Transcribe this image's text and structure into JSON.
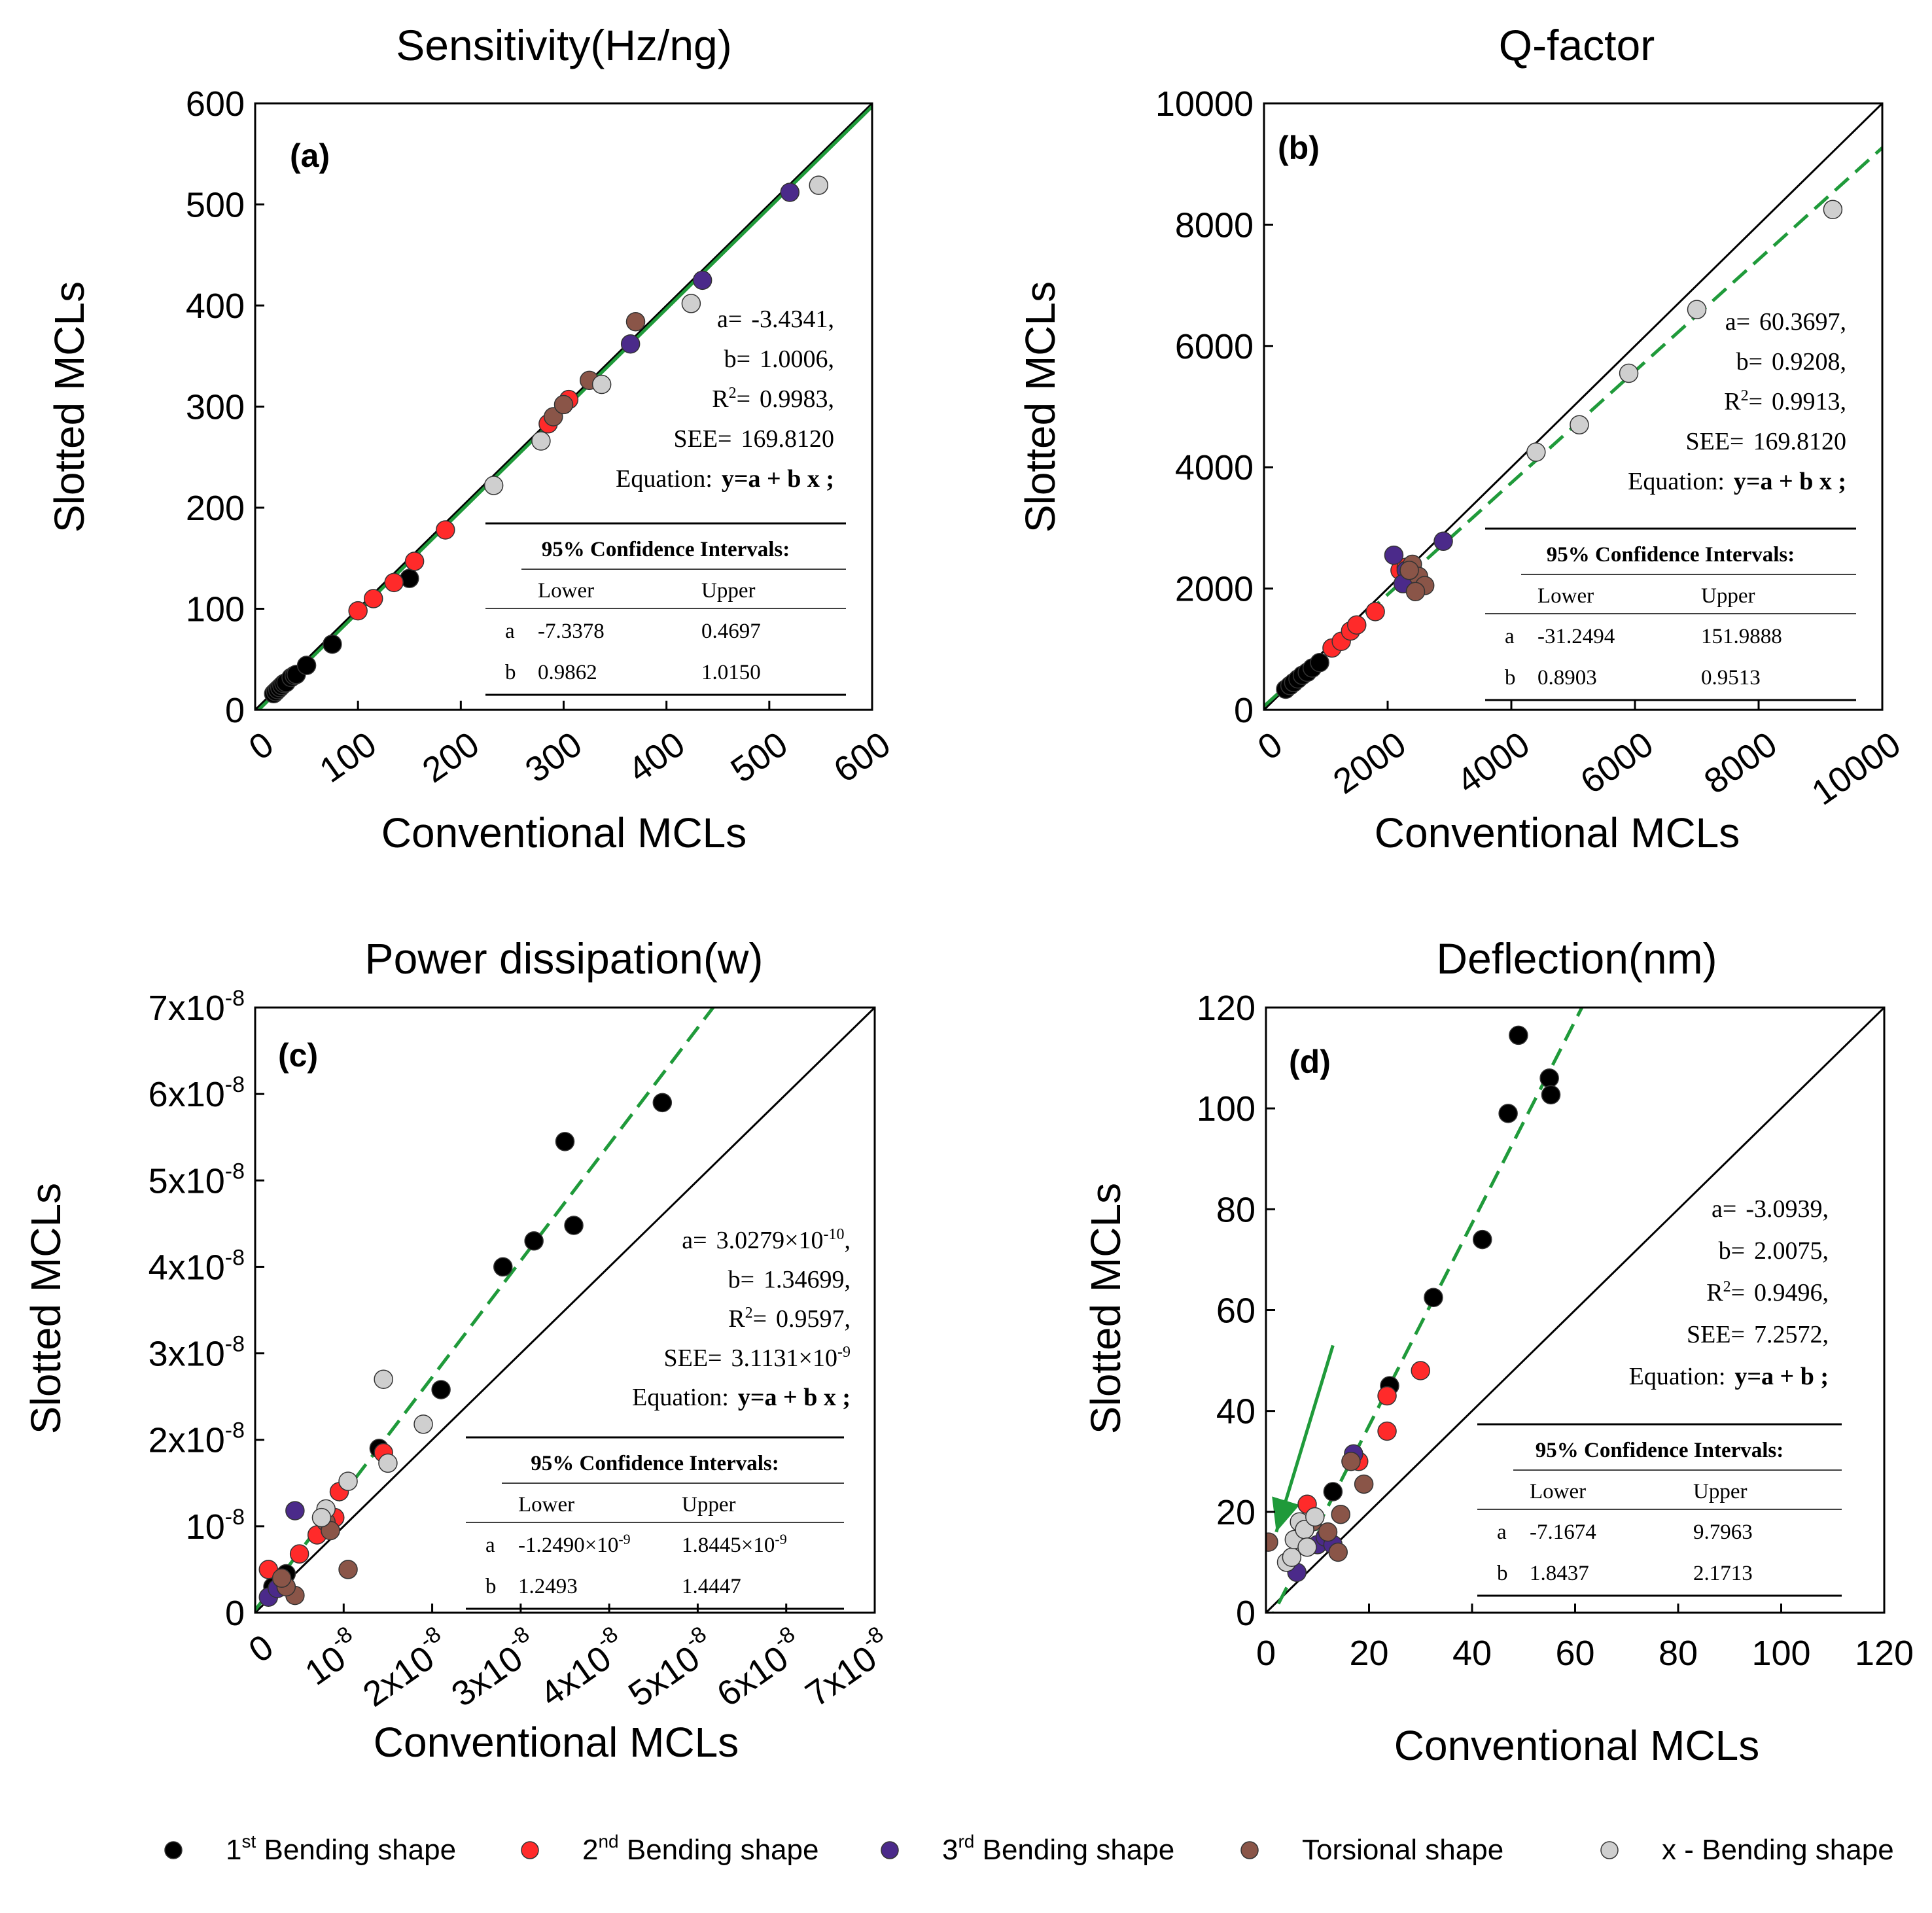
{
  "colors": {
    "bending1": "#000000",
    "bending2": "#ff2a2a",
    "bending3": "#4b2a8a",
    "torsional": "#8a5548",
    "xbending": "#cfcfcf",
    "identity_line": "#000000",
    "fit_line": "#1f9a3a",
    "arrow": "#1f9a3a"
  },
  "common": {
    "ylabel": "Slotted MCLs",
    "xlabel": "Conventional MCLs",
    "ci_title": "95% Confidence Intervals:",
    "ci_lower": "Lower",
    "ci_upper": "Upper",
    "ci_a": "a",
    "ci_b": "b"
  },
  "legend": [
    {
      "key": "bending1",
      "text": "1",
      "sup": "st",
      "rest": " Bending shape"
    },
    {
      "key": "bending2",
      "text": "2",
      "sup": "nd",
      "rest": " Bending shape"
    },
    {
      "key": "bending3",
      "text": "3",
      "sup": "rd",
      "rest": " Bending shape"
    },
    {
      "key": "torsional",
      "text": "Torsional shape",
      "sup": "",
      "rest": ""
    },
    {
      "key": "xbending",
      "text": "x - Bending shape",
      "sup": "",
      "rest": ""
    }
  ],
  "chart_data": [
    {
      "type": "scatter",
      "panel": "(a)",
      "title": "Sensitivity(Hz/ng)",
      "xlabel": "Conventional MCLs",
      "ylabel": "Slotted MCLs",
      "xlim": [
        0,
        600
      ],
      "ylim": [
        0,
        600
      ],
      "xticks": [
        0,
        100,
        200,
        300,
        400,
        500,
        600
      ],
      "xtick_labels": [
        "0",
        "100",
        "200",
        "300",
        "400",
        "500",
        "600"
      ],
      "yticks": [
        0,
        100,
        200,
        300,
        400,
        500,
        600
      ],
      "ytick_labels": [
        "0",
        "100",
        "200",
        "300",
        "400",
        "500",
        "600"
      ],
      "x_rotated": true,
      "fit": {
        "a": -3.4341,
        "b": 1.0006,
        "dashed": false
      },
      "stats": [
        {
          "label": "a=",
          "value": "-3.4341,"
        },
        {
          "label": "b=",
          "value": "1.0006,"
        },
        {
          "label": "R",
          "sup": "2",
          "eq": "=",
          "value": "0.9983,"
        },
        {
          "label": "SEE=",
          "value": "169.8120"
        },
        {
          "label": "Equation:",
          "value": "y=a + b x ;"
        }
      ],
      "ci": {
        "a": [
          "-7.3378",
          "0.4697"
        ],
        "b": [
          "0.9862",
          "1.0150"
        ]
      },
      "series": [
        {
          "name": "1st Bending shape",
          "key": "bending1",
          "points": [
            [
              18,
              16
            ],
            [
              20,
              18
            ],
            [
              22,
              20
            ],
            [
              24,
              22
            ],
            [
              26,
              24
            ],
            [
              28,
              26
            ],
            [
              30,
              27
            ],
            [
              35,
              32
            ],
            [
              38,
              34
            ],
            [
              40,
              35
            ],
            [
              50,
              44
            ],
            [
              75,
              65
            ],
            [
              150,
              130
            ]
          ]
        },
        {
          "name": "2nd Bending shape",
          "key": "bending2",
          "points": [
            [
              100,
              98
            ],
            [
              115,
              110
            ],
            [
              135,
              126
            ],
            [
              155,
              147
            ],
            [
              185,
              178
            ],
            [
              285,
              283
            ],
            [
              305,
              307
            ]
          ]
        },
        {
          "name": "3rd Bending shape",
          "key": "bending3",
          "points": [
            [
              365,
              362
            ],
            [
              435,
              425
            ],
            [
              520,
              512
            ]
          ]
        },
        {
          "name": "Torsional shape",
          "key": "torsional",
          "points": [
            [
              290,
              290
            ],
            [
              300,
              302
            ],
            [
              325,
              326
            ],
            [
              370,
              384
            ]
          ]
        },
        {
          "name": "x - Bending shape",
          "key": "xbending",
          "points": [
            [
              232,
              222
            ],
            [
              278,
              266
            ],
            [
              337,
              322
            ],
            [
              424,
              402
            ],
            [
              548,
              519
            ]
          ]
        }
      ]
    },
    {
      "type": "scatter",
      "panel": "(b)",
      "title": "Q-factor",
      "xlabel": "Conventional MCLs",
      "ylabel": "Slotted MCLs",
      "xlim": [
        0,
        10000
      ],
      "ylim": [
        0,
        10000
      ],
      "xticks": [
        0,
        2000,
        4000,
        6000,
        8000,
        10000
      ],
      "xtick_labels": [
        "0",
        "2000",
        "4000",
        "6000",
        "8000",
        "10000"
      ],
      "yticks": [
        0,
        2000,
        4000,
        6000,
        8000,
        10000
      ],
      "ytick_labels": [
        "0",
        "2000",
        "4000",
        "6000",
        "8000",
        "10000"
      ],
      "x_rotated": true,
      "fit": {
        "a": 60.3697,
        "b": 0.9208,
        "dashed": true
      },
      "stats": [
        {
          "label": "a=",
          "value": "60.3697,"
        },
        {
          "label": "b=",
          "value": "0.9208,"
        },
        {
          "label": "R",
          "sup": "2",
          "eq": "=",
          "value": "0.9913,"
        },
        {
          "label": "SEE=",
          "value": "169.8120"
        },
        {
          "label": "Equation:",
          "value": "y=a + b x ;"
        }
      ],
      "ci": {
        "a": [
          "-31.2494",
          "151.9888"
        ],
        "b": [
          "0.8903",
          "0.9513"
        ]
      },
      "series": [
        {
          "name": "1st Bending shape",
          "key": "bending1",
          "points": [
            [
              350,
              340
            ],
            [
              420,
              400
            ],
            [
              480,
              450
            ],
            [
              550,
              510
            ],
            [
              620,
              570
            ],
            [
              700,
              620
            ],
            [
              780,
              690
            ],
            [
              900,
              780
            ]
          ]
        },
        {
          "name": "2nd Bending shape",
          "key": "bending2",
          "points": [
            [
              1100,
              1020
            ],
            [
              1250,
              1130
            ],
            [
              1400,
              1300
            ],
            [
              1500,
              1400
            ],
            [
              1800,
              1620
            ],
            [
              2200,
              2300
            ],
            [
              2300,
              2350
            ]
          ]
        },
        {
          "name": "3rd Bending shape",
          "key": "bending3",
          "points": [
            [
              2100,
              2550
            ],
            [
              2300,
              2300
            ],
            [
              2900,
              2780
            ],
            [
              2250,
              2080
            ]
          ]
        },
        {
          "name": "Torsional shape",
          "key": "torsional",
          "points": [
            [
              2400,
              2400
            ],
            [
              2500,
              2200
            ],
            [
              2600,
              2050
            ],
            [
              2450,
              1950
            ],
            [
              2350,
              2300
            ]
          ]
        },
        {
          "name": "x - Bending shape",
          "key": "xbending",
          "points": [
            [
              4400,
              4250
            ],
            [
              5100,
              4700
            ],
            [
              5900,
              5550
            ],
            [
              7000,
              6600
            ],
            [
              9200,
              8250
            ]
          ]
        }
      ]
    },
    {
      "type": "scatter",
      "panel": "(c)",
      "title": "Power dissipation(w)",
      "xlabel": "Conventional MCLs",
      "ylabel": "Slotted MCLs",
      "xlim": [
        0,
        7e-08
      ],
      "ylim": [
        0,
        7e-08
      ],
      "xticks": [
        0,
        1e-08,
        2e-08,
        3e-08,
        4e-08,
        5e-08,
        6e-08,
        7e-08
      ],
      "xtick_labels": [
        [
          "0",
          ""
        ],
        [
          "10",
          "-8"
        ],
        [
          "2x10",
          "-8"
        ],
        [
          "3x10",
          "-8"
        ],
        [
          "4x10",
          "-8"
        ],
        [
          "5x10",
          "-8"
        ],
        [
          "6x10",
          "-8"
        ],
        [
          "7x10",
          "-8"
        ]
      ],
      "yticks": [
        0,
        1e-08,
        2e-08,
        3e-08,
        4e-08,
        5e-08,
        6e-08,
        7e-08
      ],
      "ytick_labels": [
        [
          "0",
          ""
        ],
        [
          "10",
          "-8"
        ],
        [
          "2x10",
          "-8"
        ],
        [
          "3x10",
          "-8"
        ],
        [
          "4x10",
          "-8"
        ],
        [
          "5x10",
          "-8"
        ],
        [
          "6x10",
          "-8"
        ],
        [
          "7x10",
          "-8"
        ]
      ],
      "x_rotated": true,
      "fit": {
        "a": 3.0279e-10,
        "b": 1.34699,
        "dashed": true
      },
      "stats": [
        {
          "label": "a=",
          "value": "3.0279×10",
          "vsup": "-10",
          "tail": ","
        },
        {
          "label": "b=",
          "value": "1.34699,"
        },
        {
          "label": "R",
          "sup": "2",
          "eq": "=",
          "value": "0.9597,"
        },
        {
          "label": "SEE=",
          "value": "3.1131×10",
          "vsup": "-9"
        },
        {
          "label": "Equation:",
          "value": "y=a + b x ;"
        }
      ],
      "ci": {
        "a": [
          "-1.2490×10",
          "1.8445×10"
        ],
        "a_sup": "-9",
        "b": [
          "1.2493",
          "1.4447"
        ]
      },
      "series": [
        {
          "name": "1st Bending shape",
          "key": "bending1",
          "points": [
            [
              2e-09,
              3e-09
            ],
            [
              3e-09,
              4e-09
            ],
            [
              3.5e-09,
              4.5e-09
            ],
            [
              1.4e-08,
              1.9e-08
            ],
            [
              2.1e-08,
              2.58e-08
            ],
            [
              2.8e-08,
              4e-08
            ],
            [
              3.15e-08,
              4.3e-08
            ],
            [
              3.5e-08,
              5.45e-08
            ],
            [
              3.6e-08,
              4.48e-08
            ],
            [
              4.6e-08,
              5.9e-08
            ]
          ]
        },
        {
          "name": "2nd Bending shape",
          "key": "bending2",
          "points": [
            [
              1.5e-09,
              5e-09
            ],
            [
              5e-09,
              6.8e-09
            ],
            [
              7e-09,
              9e-09
            ],
            [
              9e-09,
              1.1e-08
            ],
            [
              9.5e-09,
              1.4e-08
            ],
            [
              1.45e-08,
              1.85e-08
            ]
          ]
        },
        {
          "name": "3rd Bending shape",
          "key": "bending3",
          "points": [
            [
              4.5e-09,
              1.18e-08
            ],
            [
              1.5e-09,
              1.8e-09
            ],
            [
              2.5e-09,
              2.8e-09
            ]
          ]
        },
        {
          "name": "Torsional shape",
          "key": "torsional",
          "points": [
            [
              4.5e-09,
              2e-09
            ],
            [
              3.5e-09,
              3e-09
            ],
            [
              8e-09,
              1.05e-08
            ],
            [
              8.5e-09,
              9.5e-09
            ],
            [
              1.05e-08,
              5e-09
            ],
            [
              3e-09,
              4e-09
            ]
          ]
        },
        {
          "name": "x - Bending shape",
          "key": "xbending",
          "points": [
            [
              8e-09,
              1.2e-08
            ],
            [
              1.05e-08,
              1.52e-08
            ],
            [
              1.45e-08,
              2.7e-08
            ],
            [
              1.5e-08,
              1.73e-08
            ],
            [
              1.9e-08,
              2.18e-08
            ],
            [
              7.5e-09,
              1.1e-08
            ]
          ]
        }
      ]
    },
    {
      "type": "scatter",
      "panel": "(d)",
      "title": "Deflection(nm)",
      "xlabel": "Conventional MCLs",
      "ylabel": "Slotted MCLs",
      "xlim": [
        0,
        120
      ],
      "ylim": [
        0,
        120
      ],
      "xticks": [
        0,
        20,
        40,
        60,
        80,
        100,
        120
      ],
      "xtick_labels": [
        "0",
        "20",
        "40",
        "60",
        "80",
        "100",
        "120"
      ],
      "yticks": [
        0,
        20,
        40,
        60,
        80,
        100,
        120
      ],
      "ytick_labels": [
        "0",
        "20",
        "40",
        "60",
        "80",
        "100",
        "120"
      ],
      "x_rotated": false,
      "fit": {
        "a": -3.0939,
        "b": 2.0075,
        "dashed": true
      },
      "stats": [
        {
          "label": "a=",
          "value": "-3.0939,"
        },
        {
          "label": "b=",
          "value": "2.0075,"
        },
        {
          "label": "R",
          "sup": "2",
          "eq": "=",
          "value": "0.9496,"
        },
        {
          "label": "SEE=",
          "value": "7.2572,"
        },
        {
          "label": "Equation:",
          "value": "y=a + b  ;"
        }
      ],
      "ci": {
        "a": [
          "-7.1674",
          "9.7963"
        ],
        "b": [
          "1.8437",
          "2.1713"
        ]
      },
      "arrow": {
        "from": [
          13,
          53
        ],
        "to": [
          2,
          16
        ]
      },
      "series": [
        {
          "name": "1st Bending shape",
          "key": "bending1",
          "points": [
            [
              13,
              24
            ],
            [
              24,
              45
            ],
            [
              32.5,
              62.5
            ],
            [
              42,
              74
            ],
            [
              47,
              99
            ],
            [
              49,
              114.5
            ],
            [
              55,
              106
            ],
            [
              55.3,
              102.7
            ]
          ]
        },
        {
          "name": "2nd Bending shape",
          "key": "bending2",
          "points": [
            [
              8,
              21.5
            ],
            [
              18,
              30
            ],
            [
              23.5,
              43
            ],
            [
              23.5,
              36
            ],
            [
              30,
              48
            ]
          ]
        },
        {
          "name": "3rd Bending shape",
          "key": "bending3",
          "points": [
            [
              6,
              8
            ],
            [
              10,
              13.5
            ],
            [
              11.5,
              15
            ],
            [
              13,
              13.5
            ],
            [
              17,
              31.5
            ]
          ]
        },
        {
          "name": "Torsional shape",
          "key": "torsional",
          "points": [
            [
              0.5,
              14
            ],
            [
              9,
              18
            ],
            [
              12,
              16
            ],
            [
              14,
              12
            ],
            [
              14.5,
              19.5
            ],
            [
              16.5,
              30
            ],
            [
              19,
              25.5
            ]
          ]
        },
        {
          "name": "x - Bending shape",
          "key": "xbending",
          "points": [
            [
              4,
              10
            ],
            [
              5,
              11
            ],
            [
              5.5,
              14.5
            ],
            [
              6.5,
              18
            ],
            [
              7.5,
              16.5
            ],
            [
              8,
              13
            ],
            [
              9.5,
              19
            ]
          ]
        }
      ]
    }
  ]
}
